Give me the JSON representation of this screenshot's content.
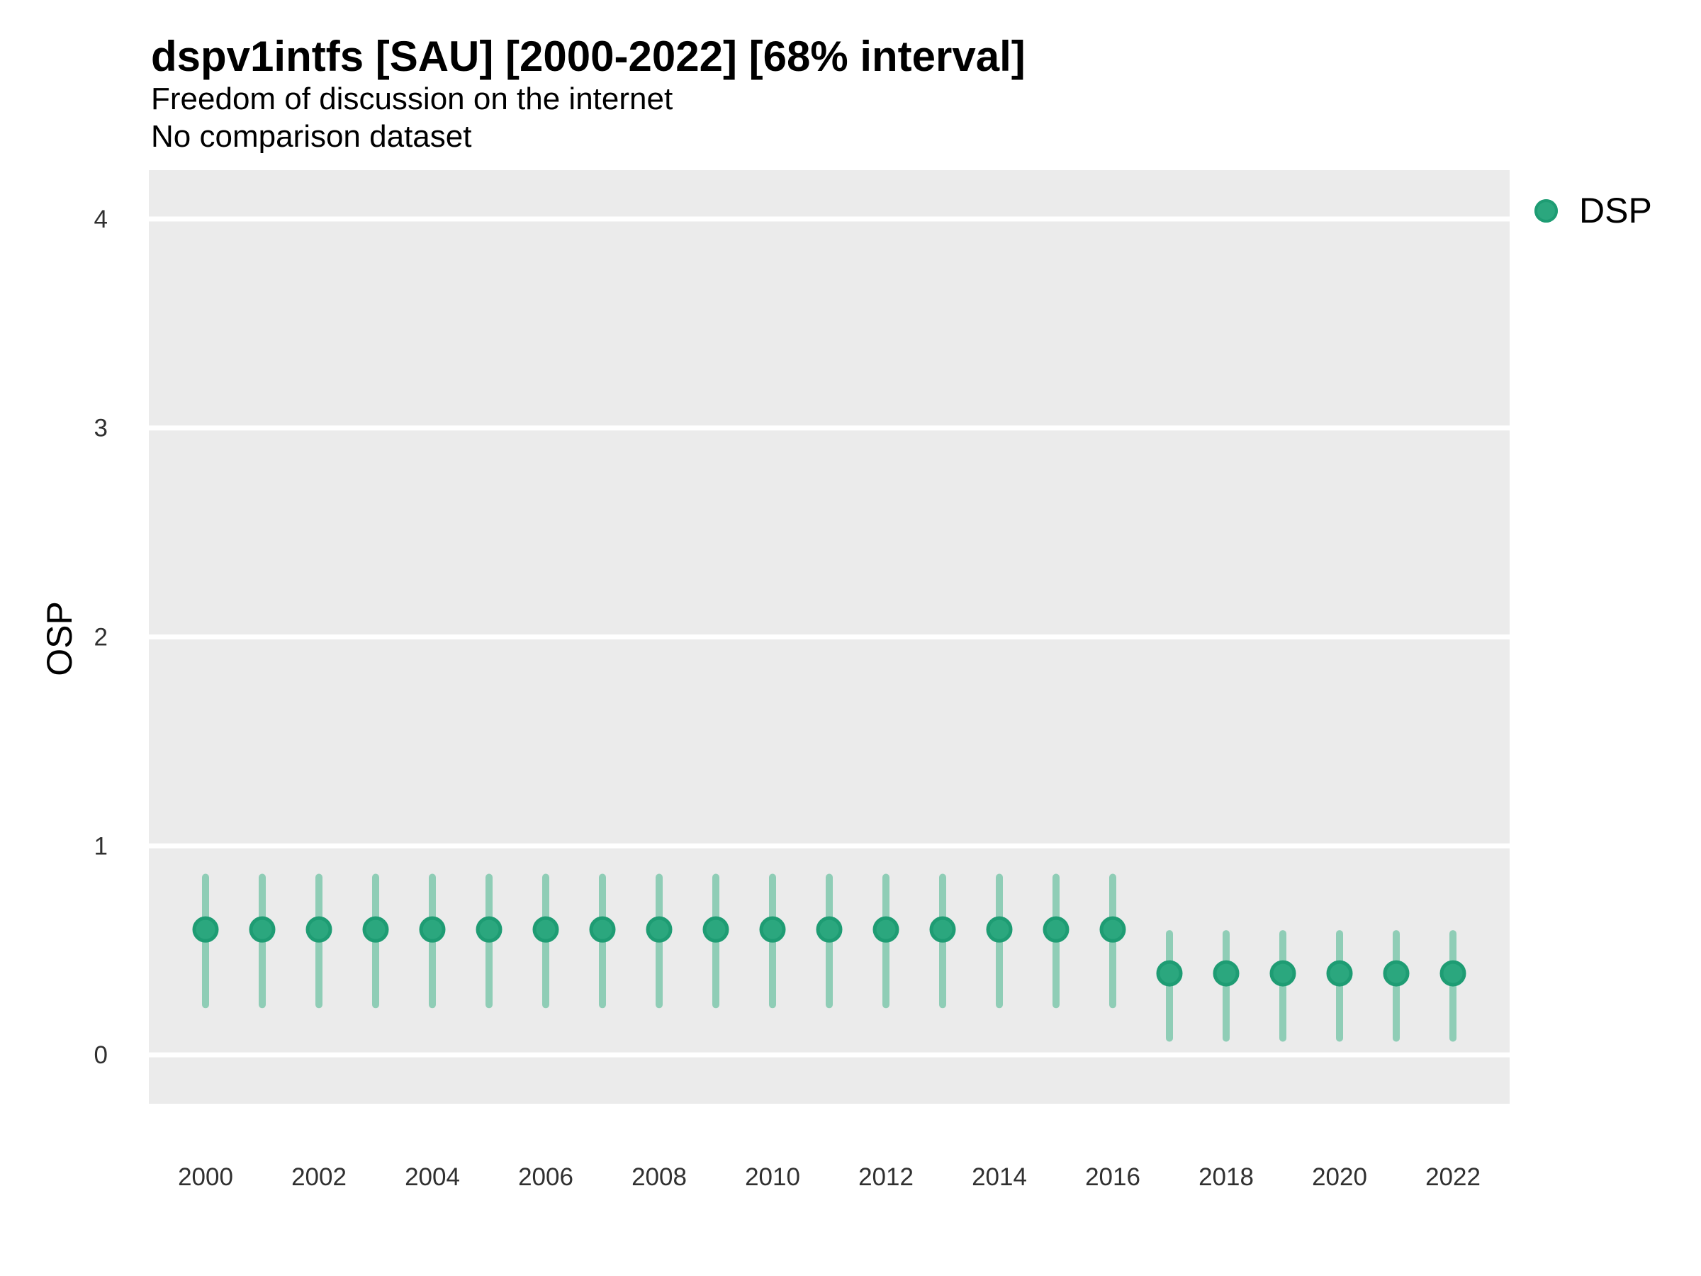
{
  "header": {
    "title": "dspv1intfs [SAU] [2000-2022] [68% interval]",
    "subtitle": "Freedom of discussion on the internet",
    "dataset_note": "No comparison dataset"
  },
  "axes": {
    "y_label": "OSP"
  },
  "legend": {
    "position": "right",
    "items": [
      {
        "label": "DSP",
        "color": "#2BA77E"
      }
    ]
  },
  "chart_data": {
    "type": "pointrange",
    "title": "dspv1intfs [SAU] [2000-2022] [68% interval]",
    "subtitle": "Freedom of discussion on the internet",
    "note": "No comparison dataset",
    "xlabel": "",
    "ylabel": "OSP",
    "legend_position": "right",
    "interval_label": "68% interval",
    "grid": "horizontal-major-only",
    "xlim": [
      1999,
      2023
    ],
    "ylim": [
      -0.234,
      4.234
    ],
    "xticks": [
      2000,
      2002,
      2004,
      2006,
      2008,
      2010,
      2012,
      2014,
      2016,
      2018,
      2020,
      2022
    ],
    "yticks": [
      0,
      1,
      2,
      3,
      4
    ],
    "series": [
      {
        "name": "DSP",
        "x": [
          2000,
          2001,
          2002,
          2003,
          2004,
          2005,
          2006,
          2007,
          2008,
          2009,
          2010,
          2011,
          2012,
          2013,
          2014,
          2015,
          2016,
          2017,
          2018,
          2019,
          2020,
          2021,
          2022
        ],
        "estimate": [
          0.6,
          0.6,
          0.6,
          0.6,
          0.6,
          0.6,
          0.6,
          0.6,
          0.6,
          0.6,
          0.6,
          0.6,
          0.6,
          0.6,
          0.6,
          0.6,
          0.6,
          0.39,
          0.39,
          0.39,
          0.39,
          0.39,
          0.39
        ],
        "lower": [
          0.24,
          0.24,
          0.24,
          0.24,
          0.24,
          0.24,
          0.24,
          0.24,
          0.24,
          0.24,
          0.24,
          0.24,
          0.24,
          0.24,
          0.24,
          0.24,
          0.24,
          0.08,
          0.08,
          0.08,
          0.08,
          0.08,
          0.08
        ],
        "upper": [
          0.85,
          0.85,
          0.85,
          0.85,
          0.85,
          0.85,
          0.85,
          0.85,
          0.85,
          0.85,
          0.85,
          0.85,
          0.85,
          0.85,
          0.85,
          0.85,
          0.85,
          0.58,
          0.58,
          0.58,
          0.58,
          0.58,
          0.58
        ]
      }
    ],
    "colors": {
      "point_fill": "#2BA77E",
      "point_stroke": "#1E9C73",
      "interval_bar": "#8FCDB6",
      "panel_background": "#EBEBEB",
      "gridline": "#FFFFFF",
      "tick_text": "#303030"
    }
  }
}
